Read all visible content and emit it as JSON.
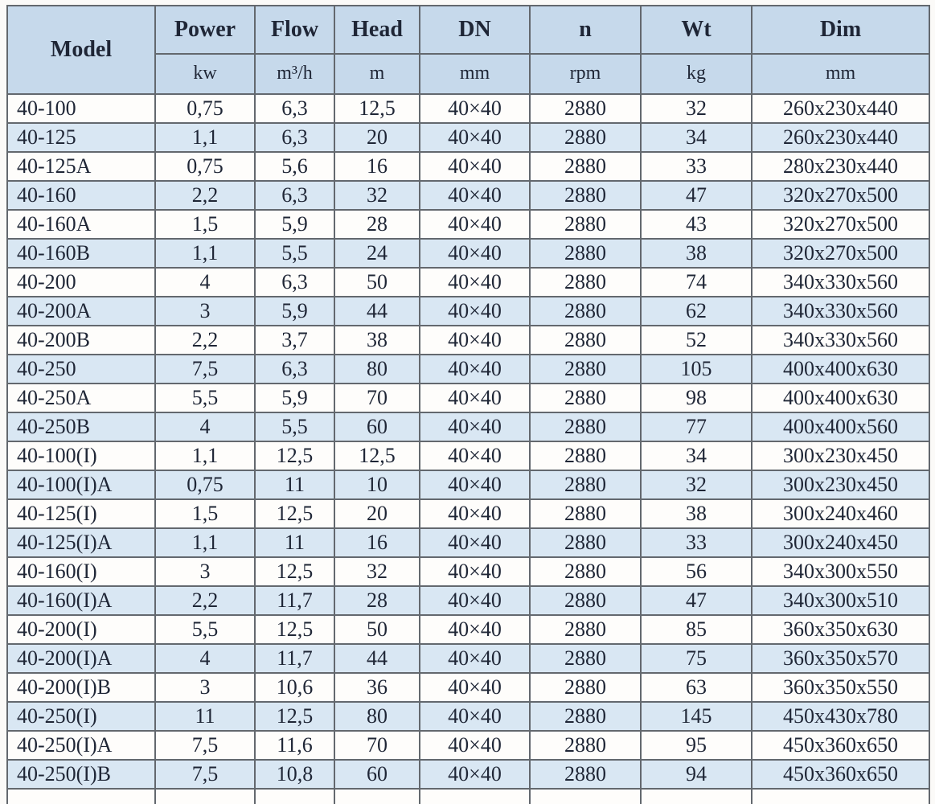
{
  "table": {
    "columns": [
      {
        "key": "model",
        "label": "Model",
        "unit": ""
      },
      {
        "key": "power",
        "label": "Power",
        "unit": "kw"
      },
      {
        "key": "flow",
        "label": "Flow",
        "unit": "m³/h"
      },
      {
        "key": "head",
        "label": "Head",
        "unit": "m"
      },
      {
        "key": "dn",
        "label": "DN",
        "unit": "mm"
      },
      {
        "key": "n",
        "label": "n",
        "unit": "rpm"
      },
      {
        "key": "wt",
        "label": "Wt",
        "unit": "kg"
      },
      {
        "key": "dim",
        "label": "Dim",
        "unit": "mm"
      }
    ],
    "rows": [
      [
        "40-100",
        "0,75",
        "6,3",
        "12,5",
        "40×40",
        "2880",
        "32",
        "260x230x440"
      ],
      [
        "40-125",
        "1,1",
        "6,3",
        "20",
        "40×40",
        "2880",
        "34",
        "260x230x440"
      ],
      [
        "40-125A",
        "0,75",
        "5,6",
        "16",
        "40×40",
        "2880",
        "33",
        "280x230x440"
      ],
      [
        "40-160",
        "2,2",
        "6,3",
        "32",
        "40×40",
        "2880",
        "47",
        "320x270x500"
      ],
      [
        "40-160A",
        "1,5",
        "5,9",
        "28",
        "40×40",
        "2880",
        "43",
        "320x270x500"
      ],
      [
        "40-160B",
        "1,1",
        "5,5",
        "24",
        "40×40",
        "2880",
        "38",
        "320x270x500"
      ],
      [
        "40-200",
        "4",
        "6,3",
        "50",
        "40×40",
        "2880",
        "74",
        "340x330x560"
      ],
      [
        "40-200A",
        "3",
        "5,9",
        "44",
        "40×40",
        "2880",
        "62",
        "340x330x560"
      ],
      [
        "40-200B",
        "2,2",
        "3,7",
        "38",
        "40×40",
        "2880",
        "52",
        "340x330x560"
      ],
      [
        "40-250",
        "7,5",
        "6,3",
        "80",
        "40×40",
        "2880",
        "105",
        "400x400x630"
      ],
      [
        "40-250A",
        "5,5",
        "5,9",
        "70",
        "40×40",
        "2880",
        "98",
        "400x400x630"
      ],
      [
        "40-250B",
        "4",
        "5,5",
        "60",
        "40×40",
        "2880",
        "77",
        "400x400x560"
      ],
      [
        "40-100(I)",
        "1,1",
        "12,5",
        "12,5",
        "40×40",
        "2880",
        "34",
        "300x230x450"
      ],
      [
        "40-100(I)A",
        "0,75",
        "11",
        "10",
        "40×40",
        "2880",
        "32",
        "300x230x450"
      ],
      [
        "40-125(I)",
        "1,5",
        "12,5",
        "20",
        "40×40",
        "2880",
        "38",
        "300x240x460"
      ],
      [
        "40-125(I)A",
        "1,1",
        "11",
        "16",
        "40×40",
        "2880",
        "33",
        "300x240x450"
      ],
      [
        "40-160(I)",
        "3",
        "12,5",
        "32",
        "40×40",
        "2880",
        "56",
        "340x300x550"
      ],
      [
        "40-160(I)A",
        "2,2",
        "11,7",
        "28",
        "40×40",
        "2880",
        "47",
        "340x300x510"
      ],
      [
        "40-200(I)",
        "5,5",
        "12,5",
        "50",
        "40×40",
        "2880",
        "85",
        "360x350x630"
      ],
      [
        "40-200(I)A",
        "4",
        "11,7",
        "44",
        "40×40",
        "2880",
        "75",
        "360x350x570"
      ],
      [
        "40-200(I)B",
        "3",
        "10,6",
        "36",
        "40×40",
        "2880",
        "63",
        "360x350x550"
      ],
      [
        "40-250(I)",
        "11",
        "12,5",
        "80",
        "40×40",
        "2880",
        "145",
        "450x430x780"
      ],
      [
        "40-250(I)A",
        "7,5",
        "11,6",
        "70",
        "40×40",
        "2880",
        "95",
        "450x360x650"
      ],
      [
        "40-250(I)B",
        "7,5",
        "10,8",
        "60",
        "40×40",
        "2880",
        "94",
        "450x360x650"
      ]
    ]
  },
  "colors": {
    "header_bg": "#c6d9eb",
    "band_bg": "#d9e7f3",
    "row_bg": "#fefdfb",
    "border": "#63686e",
    "text": "#1f2636"
  }
}
